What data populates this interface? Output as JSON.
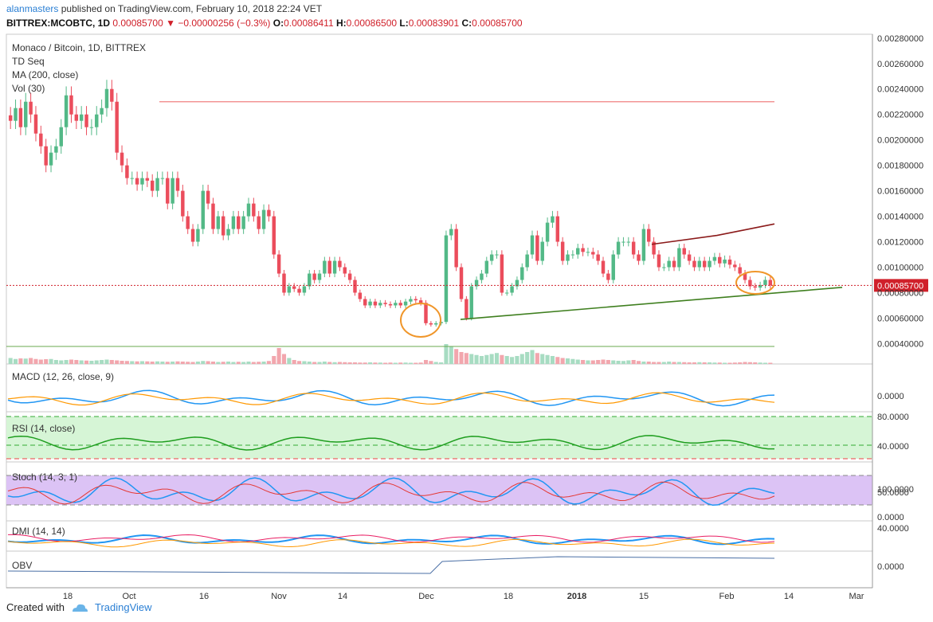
{
  "header": {
    "author": "alanmasters",
    "published": "published on TradingView.com, February 10, 2018 22:24 VET",
    "symbol": "BITTREX:MCOBTC, 1D",
    "last": "0.00085700",
    "change": "−0.00000256 (−0.3%)",
    "o_label": "O:",
    "o": "0.00086411",
    "h_label": "H:",
    "h": "0.00086500",
    "l_label": "L:",
    "l": "0.00083901",
    "c_label": "C:",
    "c": "0.00085700"
  },
  "legend": {
    "title": "Monaco / Bitcoin, 1D, BITTREX",
    "td": "TD Seq",
    "ma": "MA (200, close)",
    "vol": "Vol (30)",
    "macd": "MACD (12, 26, close, 9)",
    "rsi": "RSI (14, close)",
    "stoch": "Stoch (14, 3, 1)",
    "dmi": "DMI (14, 14)",
    "obv": "OBV"
  },
  "footer": {
    "created": "Created with",
    "brand": "TradingView"
  },
  "colors": {
    "up": "#53b987",
    "down": "#eb4d5c",
    "trend": "#3f7f1f",
    "ma": "#8b1a1a",
    "resistance": "#f08080",
    "circle": "#f0962a",
    "macd": "#2196f3",
    "signal": "#ff9800",
    "rsi": "#1f9e1f",
    "rsi_bg": "#d6f5d6",
    "stoch_bg": "#dcc3f5",
    "price_tag": "#d0202a"
  },
  "chart_data": [
    {
      "type": "candlestick",
      "title": "Monaco / Bitcoin, 1D, BITTREX",
      "x_ticks": [
        "18",
        "Oct",
        "16",
        "Nov",
        "14",
        "Dec",
        "18",
        "2018",
        "15",
        "Feb",
        "14",
        "Mar"
      ],
      "y_ticks": [
        "0.00280000",
        "0.00260000",
        "0.00240000",
        "0.00220000",
        "0.00200000",
        "0.00180000",
        "0.00160000",
        "0.00140000",
        "0.00120000",
        "0.00100000",
        "0.00080000",
        "0.00060000",
        "0.00040000"
      ],
      "ylim": [
        0.00024,
        0.00283
      ],
      "last_price": 0.000857,
      "last_price_label": "0.00085700",
      "resistance": 0.0023,
      "trendline": [
        [
          0.00059,
          0.000842
        ]
      ],
      "ma200": [
        0.00118,
        0.00134
      ],
      "close": [
        0.00215,
        0.00225,
        0.0021,
        0.0023,
        0.0022,
        0.00205,
        0.00195,
        0.0018,
        0.0019,
        0.00195,
        0.0021,
        0.00235,
        0.0022,
        0.00215,
        0.0022,
        0.0021,
        0.0021,
        0.0022,
        0.00225,
        0.0024,
        0.0023,
        0.0019,
        0.0018,
        0.0017,
        0.0017,
        0.00165,
        0.0017,
        0.00168,
        0.0016,
        0.0017,
        0.0017,
        0.0015,
        0.0017,
        0.0016,
        0.0014,
        0.0013,
        0.0012,
        0.0013,
        0.0016,
        0.0015,
        0.0013,
        0.0014,
        0.00125,
        0.0013,
        0.0014,
        0.0013,
        0.0014,
        0.0015,
        0.0014,
        0.0013,
        0.00145,
        0.0014,
        0.0011,
        0.00095,
        0.0008,
        0.00085,
        0.00083,
        0.0008,
        0.00085,
        0.00095,
        0.0009,
        0.00095,
        0.00105,
        0.00095,
        0.00105,
        0.001,
        0.00095,
        0.0009,
        0.0008,
        0.00075,
        0.0007,
        0.00073,
        0.0007,
        0.00072,
        0.00071,
        0.0007,
        0.00072,
        0.0007,
        0.00073,
        0.00075,
        0.00074,
        0.00072,
        0.00056,
        0.00055,
        0.00056,
        0.00057,
        0.00125,
        0.0013,
        0.001,
        0.00075,
        0.0006,
        0.00085,
        0.0009,
        0.00095,
        0.00105,
        0.0011,
        0.0011,
        0.0008,
        0.0008,
        0.00085,
        0.0009,
        0.001,
        0.0011,
        0.00125,
        0.00105,
        0.0012,
        0.00135,
        0.0014,
        0.0012,
        0.00105,
        0.0011,
        0.0011,
        0.00115,
        0.00112,
        0.00112,
        0.0011,
        0.00105,
        0.00095,
        0.0009,
        0.0011,
        0.0012,
        0.0012,
        0.0012,
        0.0011,
        0.00105,
        0.0013,
        0.0012,
        0.0011,
        0.001,
        0.001,
        0.00105,
        0.001,
        0.00115,
        0.0011,
        0.00105,
        0.001,
        0.00105,
        0.001,
        0.00105,
        0.00108,
        0.00103,
        0.00106,
        0.00102,
        0.001,
        0.00095,
        0.0009,
        0.00085,
        0.00084,
        0.00086,
        0.0009,
        0.000857
      ]
    },
    {
      "type": "bar",
      "name": "Volume",
      "values": [
        0.3,
        0.25,
        0.28,
        0.27,
        0.3,
        0.25,
        0.22,
        0.24,
        0.25,
        0.2,
        0.18,
        0.2,
        0.22,
        0.2,
        0.18,
        0.17,
        0.16,
        0.18,
        0.2,
        0.22,
        0.2,
        0.18,
        0.16,
        0.15,
        0.14,
        0.13,
        0.14,
        0.13,
        0.12,
        0.13,
        0.12,
        0.11,
        0.12,
        0.13,
        0.12,
        0.11,
        0.1,
        0.12,
        0.15,
        0.14,
        0.12,
        0.1,
        0.11,
        0.12,
        0.1,
        0.11,
        0.1,
        0.12,
        0.1,
        0.11,
        0.12,
        0.15,
        0.4,
        0.8,
        0.5,
        0.3,
        0.2,
        0.15,
        0.14,
        0.12,
        0.1,
        0.1,
        0.12,
        0.1,
        0.09,
        0.1,
        0.09,
        0.08,
        0.08,
        0.07,
        0.07,
        0.08,
        0.07,
        0.07,
        0.06,
        0.07,
        0.06,
        0.07,
        0.07,
        0.06,
        0.06,
        0.07,
        0.2,
        0.15,
        0.1,
        0.08,
        1.0,
        0.9,
        0.75,
        0.6,
        0.55,
        0.5,
        0.45,
        0.4,
        0.45,
        0.5,
        0.55,
        0.45,
        0.4,
        0.35,
        0.4,
        0.5,
        0.6,
        0.7,
        0.55,
        0.5,
        0.45,
        0.4,
        0.35,
        0.3,
        0.28,
        0.25,
        0.22,
        0.2,
        0.18,
        0.18,
        0.2,
        0.22,
        0.2,
        0.18,
        0.16,
        0.15,
        0.18,
        0.2,
        0.15,
        0.12,
        0.12,
        0.1,
        0.1,
        0.1,
        0.12,
        0.1,
        0.1,
        0.09,
        0.08,
        0.08,
        0.09,
        0.08,
        0.08,
        0.07,
        0.07,
        0.06,
        0.06,
        0.07,
        0.08,
        0.1,
        0.09,
        0.08,
        0.07,
        0.06,
        0.06
      ]
    },
    {
      "type": "line",
      "name": "MACD",
      "y_ticks": [
        "0.0000"
      ]
    },
    {
      "type": "line",
      "name": "RSI",
      "y_ticks": [
        "80.0000",
        "40.0000"
      ]
    },
    {
      "type": "line",
      "name": "Stoch",
      "y_ticks": [
        "100.0000",
        "50.0000",
        "0.0000"
      ]
    },
    {
      "type": "line",
      "name": "DMI",
      "y_ticks": [
        "40.0000"
      ]
    },
    {
      "type": "line",
      "name": "OBV",
      "y_ticks": [
        "0.0000"
      ]
    }
  ]
}
